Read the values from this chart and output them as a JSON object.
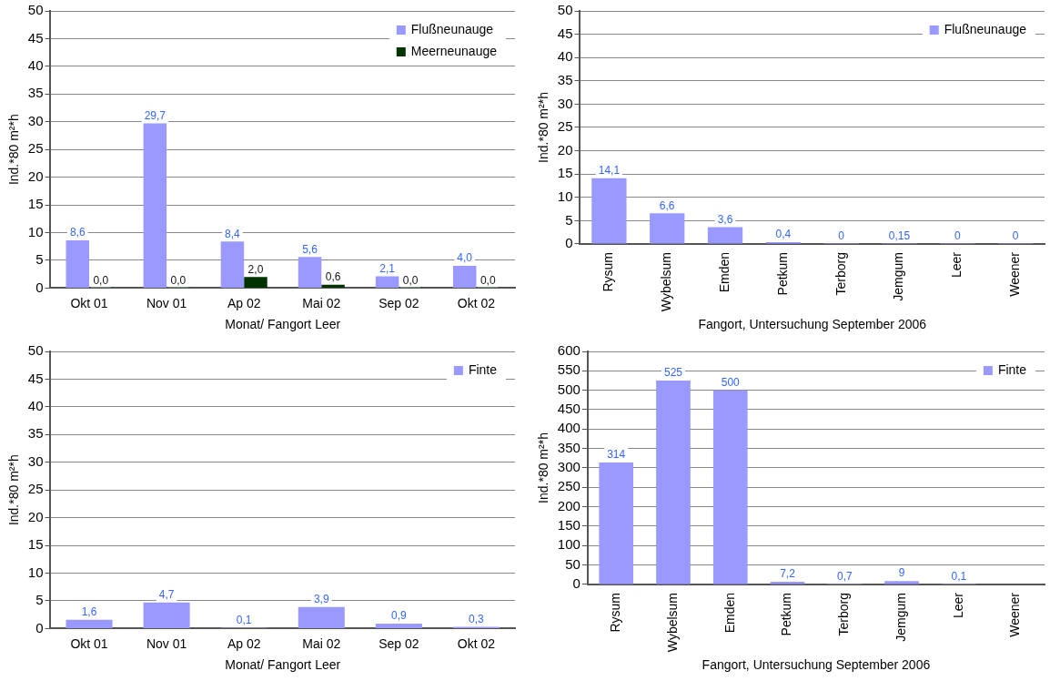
{
  "chart_data": [
    {
      "type": "bar",
      "xlabel": "Monat/ Fangort Leer",
      "ylabel": "Ind.*80 m²*h",
      "categories": [
        "Okt 01",
        "Nov 01",
        "Ap 02",
        "Mai 02",
        "Sep 02",
        "Okt 02"
      ],
      "ylim": [
        0,
        50
      ],
      "yticks": [
        0,
        5,
        10,
        15,
        20,
        25,
        30,
        35,
        40,
        45,
        50
      ],
      "grid": "y",
      "legend": "top right",
      "series": [
        {
          "name": "Flußneunauge",
          "color": "#9999ff",
          "values": [
            8.6,
            29.7,
            8.4,
            5.6,
            2.1,
            4.0
          ],
          "value_labels": [
            "8,6",
            "29,7",
            "8,4",
            "5,6",
            "2,1",
            "4,0"
          ]
        },
        {
          "name": "Meerneunauge",
          "color": "#003300",
          "values": [
            0,
            0,
            2.0,
            0.6,
            0,
            0
          ],
          "value_labels": [
            "0,0",
            "0,0",
            "2,0",
            "0,6",
            "0,0",
            "0,0"
          ]
        }
      ]
    },
    {
      "type": "bar",
      "xlabel": "Fangort, Untersuchung September 2006",
      "ylabel": "Ind.*80 m²*h",
      "categories": [
        "Rysum",
        "Wybelsum",
        "Emden",
        "Petkum",
        "Terborg",
        "Jemgum",
        "Leer",
        "Weener"
      ],
      "ylim": [
        0,
        50
      ],
      "yticks": [
        0,
        5,
        10,
        15,
        20,
        25,
        30,
        35,
        40,
        45,
        50
      ],
      "grid": "y",
      "legend": "top right",
      "series": [
        {
          "name": "Flußneunauge",
          "color": "#9999ff",
          "values": [
            14.1,
            6.6,
            3.6,
            0.4,
            0,
            0.15,
            0,
            0
          ],
          "value_labels": [
            "14,1",
            "6,6",
            "3,6",
            "0,4",
            "0",
            "0,15",
            "0",
            "0"
          ]
        }
      ]
    },
    {
      "type": "bar",
      "xlabel": "Monat/ Fangort Leer",
      "ylabel": "Ind.*80 m²*h",
      "categories": [
        "Okt 01",
        "Nov 01",
        "Ap 02",
        "Mai 02",
        "Sep 02",
        "Okt 02"
      ],
      "ylim": [
        0,
        50
      ],
      "yticks": [
        0,
        5,
        10,
        15,
        20,
        25,
        30,
        35,
        40,
        45,
        50
      ],
      "grid": "y",
      "legend": "top right",
      "series": [
        {
          "name": "Finte",
          "color": "#9999ff",
          "values": [
            1.6,
            4.7,
            0.1,
            3.9,
            0.9,
            0.3
          ],
          "value_labels": [
            "1,6",
            "4,7",
            "0,1",
            "3,9",
            "0,9",
            "0,3"
          ]
        }
      ]
    },
    {
      "type": "bar",
      "xlabel": "Fangort, Untersuchung September 2006",
      "ylabel": "Ind.*80 m²*h",
      "categories": [
        "Rysum",
        "Wybelsum",
        "Emden",
        "Petkum",
        "Terborg",
        "Jemgum",
        "Leer",
        "Weener"
      ],
      "ylim": [
        0,
        600
      ],
      "yticks": [
        0,
        50,
        100,
        150,
        200,
        250,
        300,
        350,
        400,
        450,
        500,
        550,
        600
      ],
      "grid": "y",
      "legend": "top right",
      "series": [
        {
          "name": "Finte",
          "color": "#9999ff",
          "values": [
            314,
            525,
            500,
            7.2,
            0.7,
            9,
            0.1,
            null
          ],
          "value_labels": [
            "314",
            "525",
            "500",
            "7,2",
            "0,7",
            "9",
            "0,1",
            null
          ]
        }
      ]
    }
  ]
}
